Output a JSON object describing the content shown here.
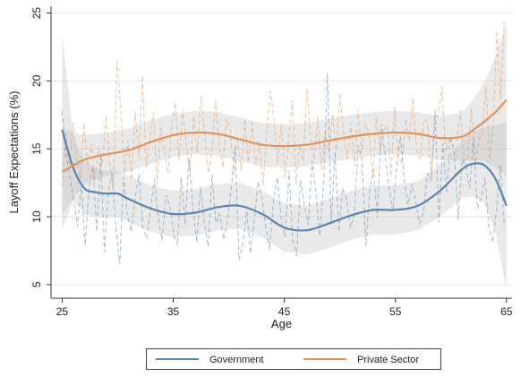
{
  "chart_data": {
    "type": "line",
    "title": "",
    "xlabel": "Age",
    "ylabel": "Layoff Expectations (%)",
    "xlim": [
      24,
      65.5
    ],
    "ylim": [
      4,
      25.5
    ],
    "xticks": [
      25,
      35,
      45,
      55,
      65
    ],
    "yticks": [
      5,
      10,
      15,
      20,
      25
    ],
    "grid": "horizontal",
    "legend_position": "bottom",
    "series": [
      {
        "name": "Government",
        "color": "#5b84b1",
        "smooth": {
          "x": [
            25,
            26,
            27,
            28,
            29,
            30,
            31,
            33,
            35,
            37,
            39,
            41,
            43,
            45,
            47,
            49,
            51,
            53,
            55,
            57,
            59,
            61,
            62,
            63,
            64,
            65
          ],
          "y": [
            16.4,
            13.6,
            12.1,
            11.8,
            11.7,
            11.7,
            11.3,
            10.6,
            10.2,
            10.3,
            10.7,
            10.8,
            10.2,
            9.2,
            9.0,
            9.5,
            10.1,
            10.5,
            10.5,
            10.8,
            11.9,
            13.5,
            13.9,
            13.8,
            12.8,
            10.8
          ]
        },
        "band_upper": [
          23.5,
          16.0,
          14.0,
          13.6,
          13.4,
          13.4,
          13.0,
          12.3,
          11.9,
          12.0,
          12.4,
          12.5,
          11.9,
          11.0,
          10.8,
          11.3,
          11.9,
          12.3,
          12.3,
          12.6,
          13.8,
          15.6,
          16.3,
          16.6,
          16.7,
          17.0
        ],
        "band_lower": [
          9.0,
          11.2,
          10.2,
          10.0,
          10.0,
          10.0,
          9.6,
          8.9,
          8.5,
          8.6,
          9.0,
          9.1,
          8.5,
          7.4,
          7.2,
          7.7,
          8.3,
          8.7,
          8.7,
          9.0,
          10.0,
          11.4,
          11.5,
          11.0,
          8.9,
          4.6
        ],
        "raw": [
          17.8,
          14.6,
          12.9,
          11.2,
          9.3,
          12.4,
          7.9,
          12.1,
          13.7,
          8.9,
          14.6,
          7.4,
          11.8,
          13.2,
          9.1,
          6.5,
          12.9,
          10.1,
          8.9,
          11.4,
          13.1,
          9.2,
          8.4,
          10.6,
          12.8,
          9.9,
          8.3,
          11.6,
          10.8,
          8.7,
          7.9,
          12.9,
          9.4,
          14.3,
          10.7,
          8.1,
          12.2,
          9.6,
          7.8,
          13.1,
          9.5,
          10.2,
          8.3,
          9.7,
          12.1,
          15.2,
          6.8,
          8.1,
          10.4,
          7.3,
          9.9,
          12.6,
          11.4,
          9.2,
          7.6,
          11.2,
          12.9,
          9.8,
          8.5,
          13.4,
          8.2,
          7.1,
          12.7,
          10.9,
          9.4,
          14.1,
          11.8,
          8.6,
          12.4,
          20.6,
          9.5,
          14.8,
          8.9,
          12.1,
          11.3,
          9.2,
          10.1,
          15.3,
          14.2,
          7.8,
          11.9,
          13.5,
          9.9,
          16.8,
          14.6,
          12.3,
          10.4,
          13.8,
          15.9,
          12.7,
          10.9,
          12.4,
          11.1,
          9.5,
          10.3,
          13.2,
          12.6,
          17.9,
          9.6,
          15.4,
          11.8,
          15.9,
          14.7,
          9.8,
          14.2,
          13.7,
          12.1,
          15.8,
          10.6,
          11.4,
          12.9,
          9.1,
          8.1,
          10.6,
          13.8,
          9.3
        ]
      },
      {
        "name": "Private Sector",
        "color": "#e0935a",
        "smooth": {
          "x": [
            25,
            27,
            29,
            31,
            33,
            35,
            37,
            39,
            41,
            43,
            45,
            47,
            49,
            51,
            53,
            55,
            57,
            59,
            61,
            62,
            63,
            64,
            65
          ],
          "y": [
            13.3,
            14.2,
            14.6,
            14.9,
            15.5,
            16.0,
            16.2,
            16.1,
            15.7,
            15.3,
            15.2,
            15.3,
            15.6,
            15.9,
            16.1,
            16.2,
            16.1,
            15.8,
            15.9,
            16.4,
            17.0,
            17.7,
            18.6
          ]
        },
        "band_upper": [
          16.5,
          16.0,
          16.2,
          16.5,
          17.1,
          17.6,
          17.8,
          17.7,
          17.3,
          16.9,
          16.8,
          16.9,
          17.2,
          17.5,
          17.7,
          17.8,
          17.7,
          17.4,
          17.7,
          18.6,
          19.9,
          21.8,
          24.2
        ],
        "band_lower": [
          10.2,
          12.4,
          13.0,
          13.3,
          13.9,
          14.4,
          14.6,
          14.5,
          14.1,
          13.7,
          13.6,
          13.7,
          14.0,
          14.3,
          14.5,
          14.6,
          14.5,
          14.2,
          14.1,
          14.2,
          14.1,
          13.6,
          13.0
        ],
        "raw": [
          12.2,
          16.1,
          13.5,
          17.0,
          14.2,
          12.8,
          16.9,
          13.7,
          15.4,
          12.6,
          15.2,
          13.9,
          17.4,
          14.1,
          11.9,
          21.4,
          18.3,
          13.2,
          15.6,
          12.7,
          17.8,
          14.3,
          20.4,
          13.6,
          15.9,
          17.7,
          12.4,
          16.6,
          14.8,
          13.2,
          16.9,
          18.4,
          14.1,
          17.9,
          15.2,
          13.3,
          17.4,
          14.7,
          18.9,
          16.1,
          13.2,
          14.9,
          18.6,
          15.3,
          13.6,
          17.2,
          16.4,
          13.1,
          15.9,
          13.4,
          17.2,
          14.0,
          16.9,
          13.8,
          15.6,
          12.3,
          16.3,
          19.3,
          17.1,
          13.9,
          16.8,
          12.9,
          15.7,
          18.6,
          12.4,
          15.3,
          14.1,
          19.4,
          15.6,
          14.2,
          17.4,
          13.4,
          16.3,
          14.7,
          17.6,
          14.9,
          19.1,
          16.3,
          14.2,
          16.9,
          13.7,
          17.9,
          14.7,
          16.8,
          16.2,
          13.1,
          17.3,
          14.9,
          16.4,
          16.7,
          13.0,
          18.1,
          14.4,
          13.9,
          17.2,
          15.6,
          18.7,
          14.9,
          14.3,
          17.2,
          16.9,
          12.8,
          16.9,
          17.6,
          19.6,
          14.5,
          15.9,
          15.2,
          15.7,
          17.8,
          14.1,
          14.3,
          18.0,
          13.7,
          15.6,
          16.3,
          19.6,
          14.2,
          16.8,
          23.7,
          18.6,
          24.3
        ]
      }
    ]
  }
}
